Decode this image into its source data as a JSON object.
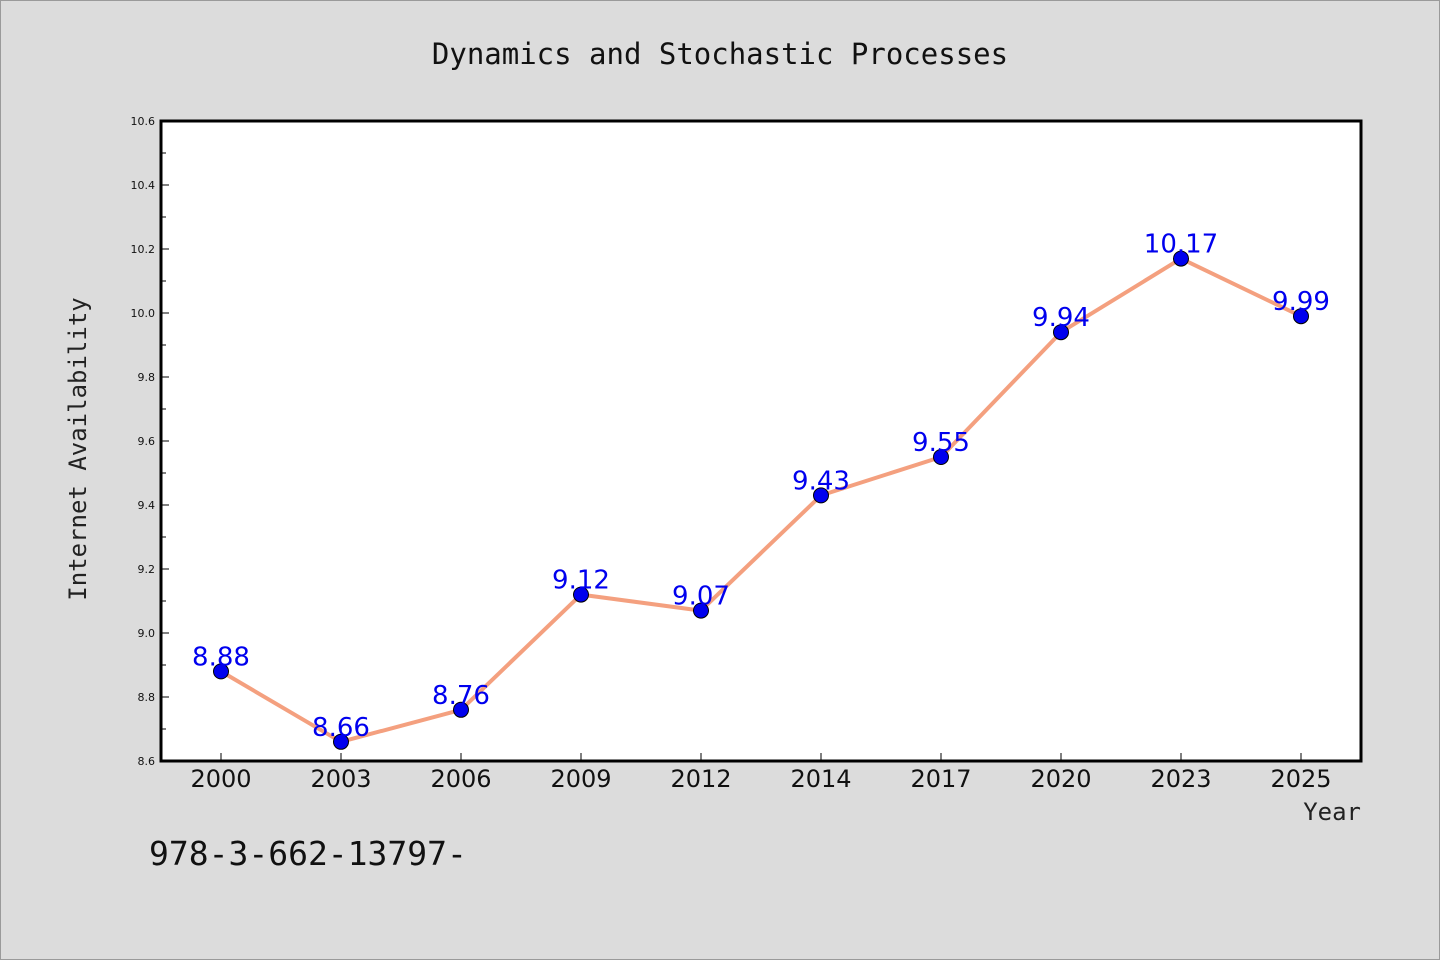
{
  "chart_data": {
    "type": "line",
    "title": "Dynamics and Stochastic Processes",
    "xlabel": "Year",
    "ylabel": "Internet Availability",
    "categories": [
      "2000",
      "2003",
      "2006",
      "2009",
      "2012",
      "2014",
      "2017",
      "2020",
      "2023",
      "2025"
    ],
    "series": [
      {
        "values": [
          8.88,
          8.66,
          8.76,
          9.12,
          9.07,
          9.43,
          9.55,
          9.94,
          10.17,
          9.99
        ]
      }
    ],
    "data_labels": [
      "8.88",
      "8.66",
      "8.76",
      "9.12",
      "9.07",
      "9.43",
      "9.55",
      "9.94",
      "10.17",
      "9.99"
    ],
    "ylim": [
      8.6,
      10.6
    ],
    "yticks": [
      "8.6",
      "8.8",
      "9.0",
      "9.2",
      "9.4",
      "9.6",
      "9.8",
      "10.0",
      "10.2",
      "10.4",
      "10.6"
    ],
    "grid": false,
    "legend": "none",
    "colors": {
      "line": "#f4a07f",
      "marker": "#0000ee",
      "label": "#0000ee",
      "background": "#dcdcdc",
      "plot_area": "#ffffff"
    }
  },
  "footer_text": "978-3-662-13797-"
}
